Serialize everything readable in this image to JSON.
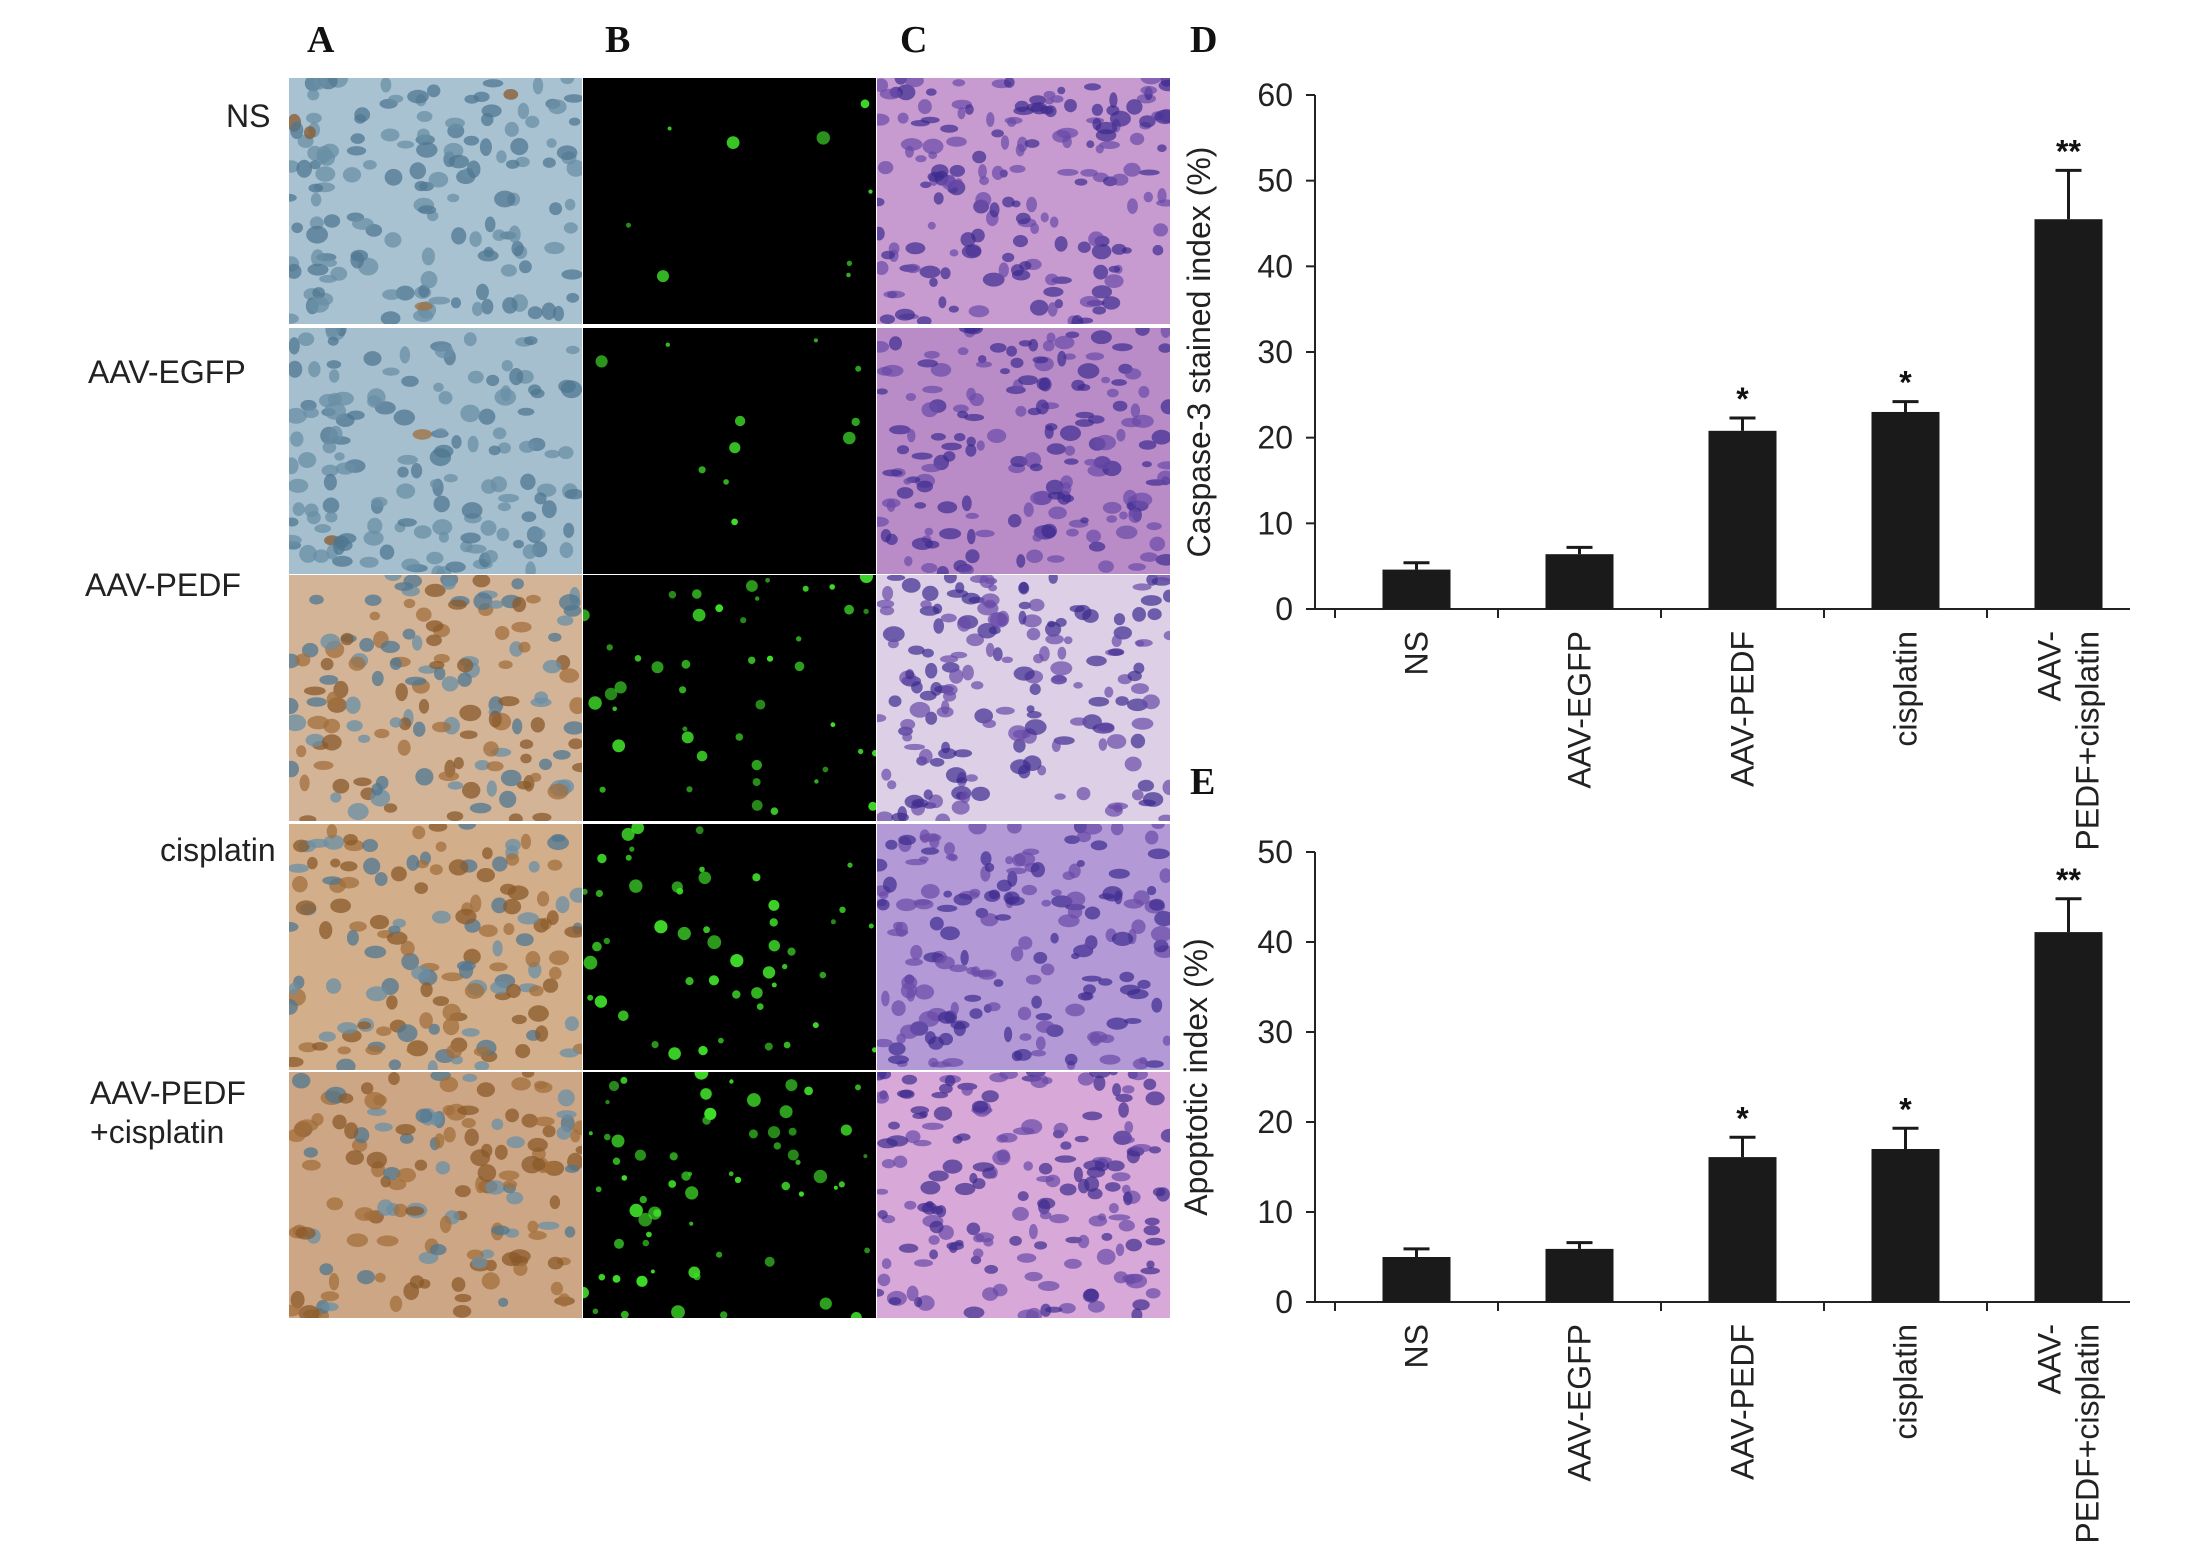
{
  "panel_labels": {
    "a": "A",
    "b": "B",
    "c": "C",
    "d": "D",
    "e": "E"
  },
  "row_labels": [
    [
      "NS"
    ],
    [
      "AAV-EGFP"
    ],
    [
      "AAV-PEDF"
    ],
    [
      "cisplatin"
    ],
    [
      "AAV-PEDF",
      "+cisplatin"
    ]
  ],
  "panels": {
    "ihc_bg": [
      "#a9c2d2",
      "#a5bfcf",
      "#d4b497",
      "#d2ae8a",
      "#cda685"
    ],
    "ihc_brown_fraction": [
      0.02,
      0.04,
      0.45,
      0.6,
      0.7
    ],
    "tunel_dot_color": "#3fdc2a",
    "tunel_dot_counts": [
      9,
      11,
      45,
      50,
      65
    ],
    "he_bg": [
      "#c79bd0",
      "#b98cc8",
      "#dccfe6",
      "#b39ad6",
      "#d8a8d8"
    ]
  },
  "chart_data": [
    {
      "type": "bar",
      "categories": [
        "NS",
        "AAV-EGFP",
        "AAV-PEDF",
        "cisplatin",
        "AAV-PEDF+cisplatin"
      ],
      "category_label_lines": [
        [
          "NS"
        ],
        [
          "AAV-EGFP"
        ],
        [
          "AAV-PEDF"
        ],
        [
          "cisplatin"
        ],
        [
          "AAV-",
          "PEDF+cisplatin"
        ]
      ],
      "values": [
        4.6,
        6.4,
        20.8,
        23.0,
        45.5
      ],
      "errors": [
        0.8,
        0.8,
        1.5,
        1.2,
        5.7
      ],
      "significance": [
        "",
        "",
        "*",
        "*",
        "**"
      ],
      "ylabel": "Caspase-3 stained index (%)",
      "ylim": [
        0,
        60
      ],
      "yticks": [
        0,
        10,
        20,
        30,
        40,
        50,
        60
      ],
      "bar_color": "#1a1a1a",
      "grid": false
    },
    {
      "type": "bar",
      "categories": [
        "NS",
        "AAV-EGFP",
        "AAV-PEDF",
        "cisplatin",
        "AAV-PEDF+cisplatin"
      ],
      "category_label_lines": [
        [
          "NS"
        ],
        [
          "AAV-EGFP"
        ],
        [
          "AAV-PEDF"
        ],
        [
          "cisplatin"
        ],
        [
          "AAV-",
          "PEDF+cisplatin"
        ]
      ],
      "values": [
        5.0,
        5.9,
        16.1,
        17.0,
        41.1
      ],
      "errors": [
        0.9,
        0.7,
        2.2,
        2.3,
        3.7
      ],
      "significance": [
        "",
        "",
        "*",
        "*",
        "**"
      ],
      "ylabel": "Apoptotic index (%)",
      "ylim": [
        0,
        50
      ],
      "yticks": [
        0,
        10,
        20,
        30,
        40,
        50
      ],
      "bar_color": "#1a1a1a",
      "grid": false
    }
  ]
}
